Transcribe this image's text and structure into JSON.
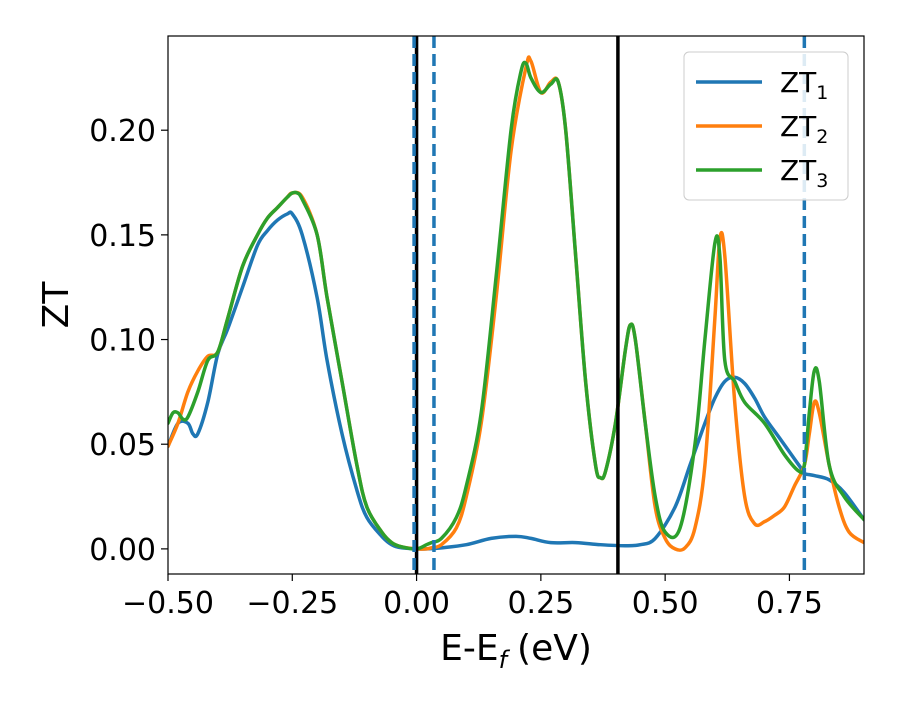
{
  "chart_data": {
    "type": "line",
    "xlabel": "E-E",
    "xlabel_sub": "f",
    "xlabel_unit": "(eV)",
    "ylabel": "ZT",
    "xlim": [
      -0.5,
      0.9
    ],
    "ylim": [
      -0.012,
      0.245
    ],
    "grid": false,
    "legend_position": "top-right",
    "xticks": [
      {
        "value": -0.5,
        "label": "−0.50"
      },
      {
        "value": -0.25,
        "label": "−0.25"
      },
      {
        "value": 0.0,
        "label": "0.00"
      },
      {
        "value": 0.25,
        "label": "0.25"
      },
      {
        "value": 0.5,
        "label": "0.50"
      },
      {
        "value": 0.75,
        "label": "0.75"
      }
    ],
    "yticks": [
      {
        "value": 0.0,
        "label": "0.00"
      },
      {
        "value": 0.05,
        "label": "0.05"
      },
      {
        "value": 0.1,
        "label": "0.10"
      },
      {
        "value": 0.15,
        "label": "0.15"
      },
      {
        "value": 0.2,
        "label": "0.20"
      }
    ],
    "vlines": [
      {
        "x": 0.0,
        "style": "solid",
        "color": "#000000"
      },
      {
        "x": 0.405,
        "style": "solid",
        "color": "#000000"
      },
      {
        "x": -0.005,
        "style": "dashed",
        "color": "#1f77b4"
      },
      {
        "x": 0.035,
        "style": "dashed",
        "color": "#1f77b4"
      },
      {
        "x": 0.78,
        "style": "dashed",
        "color": "#1f77b4"
      }
    ],
    "series": [
      {
        "name": "ZT",
        "name_sub": "1",
        "color": "#1f77b4",
        "x": [
          -0.5,
          -0.48,
          -0.46,
          -0.45,
          -0.44,
          -0.42,
          -0.4,
          -0.38,
          -0.35,
          -0.32,
          -0.3,
          -0.28,
          -0.26,
          -0.25,
          -0.23,
          -0.2,
          -0.18,
          -0.15,
          -0.12,
          -0.1,
          -0.07,
          -0.05,
          -0.03,
          0.0,
          0.02,
          0.05,
          0.1,
          0.15,
          0.2,
          0.23,
          0.27,
          0.32,
          0.37,
          0.42,
          0.45,
          0.48,
          0.52,
          0.55,
          0.58,
          0.6,
          0.62,
          0.64,
          0.66,
          0.68,
          0.7,
          0.73,
          0.76,
          0.775,
          0.78,
          0.8,
          0.83,
          0.86,
          0.9
        ],
        "y": [
          0.049,
          0.06,
          0.06,
          0.055,
          0.055,
          0.07,
          0.093,
          0.105,
          0.125,
          0.145,
          0.152,
          0.157,
          0.16,
          0.16,
          0.15,
          0.12,
          0.09,
          0.055,
          0.028,
          0.015,
          0.006,
          0.002,
          0.0005,
          0.0,
          0.0,
          0.0005,
          0.002,
          0.005,
          0.006,
          0.005,
          0.003,
          0.003,
          0.002,
          0.0015,
          0.002,
          0.005,
          0.02,
          0.04,
          0.06,
          0.072,
          0.08,
          0.082,
          0.079,
          0.072,
          0.063,
          0.053,
          0.043,
          0.038,
          0.036,
          0.035,
          0.033,
          0.027,
          0.014
        ]
      },
      {
        "name": "ZT",
        "name_sub": "2",
        "color": "#ff7f0e",
        "x": [
          -0.5,
          -0.48,
          -0.46,
          -0.44,
          -0.42,
          -0.4,
          -0.38,
          -0.35,
          -0.32,
          -0.3,
          -0.28,
          -0.26,
          -0.25,
          -0.23,
          -0.2,
          -0.18,
          -0.15,
          -0.12,
          -0.1,
          -0.07,
          -0.05,
          -0.03,
          0.0,
          0.02,
          0.03,
          0.05,
          0.08,
          0.1,
          0.13,
          0.16,
          0.19,
          0.22,
          0.23,
          0.25,
          0.27,
          0.285,
          0.3,
          0.32,
          0.34,
          0.36,
          0.37,
          0.38,
          0.4,
          0.42,
          0.43,
          0.44,
          0.46,
          0.48,
          0.5,
          0.52,
          0.54,
          0.56,
          0.58,
          0.6,
          0.61,
          0.62,
          0.64,
          0.66,
          0.68,
          0.7,
          0.72,
          0.74,
          0.76,
          0.78,
          0.79,
          0.8,
          0.81,
          0.83,
          0.85,
          0.87,
          0.9
        ],
        "y": [
          0.049,
          0.06,
          0.075,
          0.085,
          0.092,
          0.094,
          0.11,
          0.135,
          0.15,
          0.158,
          0.163,
          0.168,
          0.17,
          0.168,
          0.15,
          0.12,
          0.08,
          0.04,
          0.02,
          0.008,
          0.003,
          0.001,
          0.0,
          0.0,
          0.0005,
          0.002,
          0.01,
          0.025,
          0.06,
          0.12,
          0.19,
          0.23,
          0.233,
          0.218,
          0.223,
          0.223,
          0.2,
          0.14,
          0.08,
          0.04,
          0.034,
          0.037,
          0.06,
          0.095,
          0.107,
          0.1,
          0.06,
          0.02,
          0.005,
          0.0,
          0.0005,
          0.01,
          0.04,
          0.11,
          0.148,
          0.14,
          0.07,
          0.025,
          0.012,
          0.013,
          0.016,
          0.02,
          0.03,
          0.04,
          0.055,
          0.07,
          0.065,
          0.04,
          0.02,
          0.008,
          0.003
        ]
      },
      {
        "name": "ZT",
        "name_sub": "3",
        "color": "#2ca02c",
        "x": [
          -0.5,
          -0.49,
          -0.48,
          -0.47,
          -0.46,
          -0.44,
          -0.42,
          -0.4,
          -0.38,
          -0.35,
          -0.32,
          -0.3,
          -0.28,
          -0.26,
          -0.25,
          -0.24,
          -0.23,
          -0.2,
          -0.18,
          -0.15,
          -0.12,
          -0.1,
          -0.07,
          -0.05,
          -0.03,
          0.0,
          0.02,
          0.03,
          0.05,
          0.08,
          0.1,
          0.13,
          0.16,
          0.19,
          0.21,
          0.22,
          0.23,
          0.25,
          0.27,
          0.285,
          0.3,
          0.32,
          0.34,
          0.36,
          0.37,
          0.38,
          0.4,
          0.42,
          0.43,
          0.44,
          0.46,
          0.48,
          0.5,
          0.53,
          0.56,
          0.58,
          0.6,
          0.61,
          0.62,
          0.64,
          0.66,
          0.7,
          0.74,
          0.77,
          0.78,
          0.79,
          0.8,
          0.81,
          0.83,
          0.86,
          0.9
        ],
        "y": [
          0.06,
          0.065,
          0.065,
          0.062,
          0.063,
          0.075,
          0.09,
          0.094,
          0.11,
          0.135,
          0.15,
          0.158,
          0.163,
          0.168,
          0.17,
          0.17,
          0.167,
          0.15,
          0.12,
          0.08,
          0.04,
          0.02,
          0.008,
          0.003,
          0.001,
          0.0,
          0.002,
          0.003,
          0.005,
          0.015,
          0.03,
          0.065,
          0.13,
          0.2,
          0.228,
          0.232,
          0.225,
          0.218,
          0.222,
          0.223,
          0.2,
          0.14,
          0.08,
          0.04,
          0.034,
          0.037,
          0.06,
          0.095,
          0.107,
          0.1,
          0.06,
          0.025,
          0.008,
          0.01,
          0.05,
          0.1,
          0.146,
          0.14,
          0.09,
          0.08,
          0.07,
          0.06,
          0.045,
          0.037,
          0.04,
          0.065,
          0.085,
          0.08,
          0.04,
          0.025,
          0.014
        ]
      }
    ]
  }
}
